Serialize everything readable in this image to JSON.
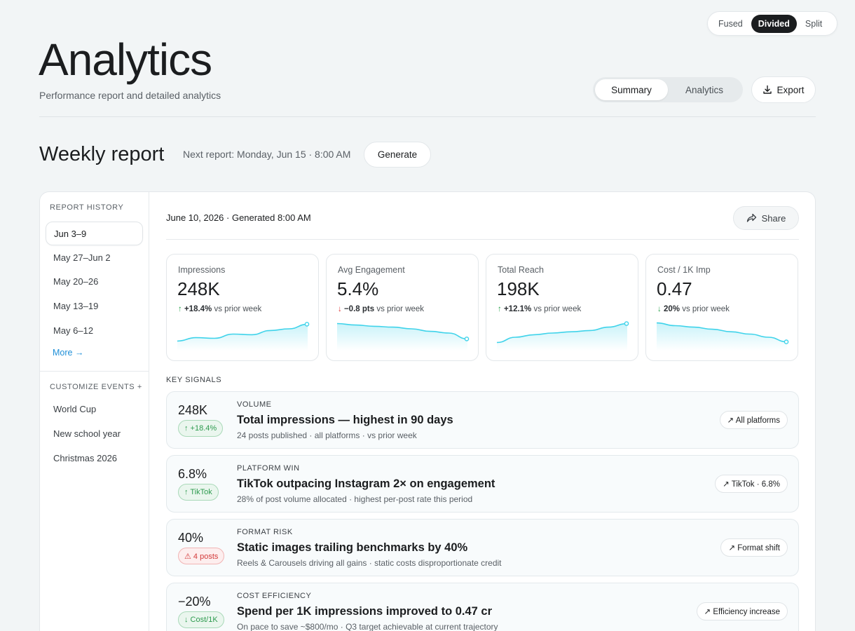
{
  "view_toggle": {
    "options": [
      "Fused",
      "Divided",
      "Split"
    ],
    "active": "Divided"
  },
  "header": {
    "title": "Analytics",
    "subtitle": "Performance report and detailed analytics",
    "tabs": [
      "Summary",
      "Analytics"
    ],
    "active_tab": "Summary",
    "export_label": "Export"
  },
  "weekly": {
    "title": "Weekly report",
    "next_report": "Next report: Monday, Jun 15 · 8:00 AM",
    "generate_label": "Generate"
  },
  "sidebar": {
    "history_heading": "REPORT HISTORY",
    "history": [
      "Jun 3–9",
      "May 27–Jun 2",
      "May 20–26",
      "May 13–19",
      "May 6–12"
    ],
    "active_history": "Jun 3–9",
    "more_label": "More →",
    "events_heading": "CUSTOMIZE EVENTS +",
    "events": [
      "World Cup",
      "New school year",
      "Christmas 2026"
    ]
  },
  "report": {
    "generated": "June 10, 2026 · Generated 8:00 AM",
    "share_label": "Share",
    "metrics": [
      {
        "label": "Impressions",
        "value": "248K",
        "arrow": "↑",
        "change": "+18.4%",
        "suffix": "vs prior week",
        "trend": "up",
        "spark": [
          0.12,
          0.28,
          0.25,
          0.45,
          0.42,
          0.62,
          0.7,
          0.92
        ]
      },
      {
        "label": "Avg Engagement",
        "value": "5.4%",
        "arrow": "↓",
        "change": "−0.8 pts",
        "suffix": "vs prior week",
        "trend": "down-bad",
        "spark": [
          0.95,
          0.88,
          0.82,
          0.78,
          0.7,
          0.58,
          0.5,
          0.22
        ]
      },
      {
        "label": "Total Reach",
        "value": "198K",
        "arrow": "↑",
        "change": "+12.1%",
        "suffix": "vs prior week",
        "trend": "up",
        "spark": [
          0.05,
          0.3,
          0.42,
          0.5,
          0.56,
          0.62,
          0.78,
          0.95
        ]
      },
      {
        "label": "Cost / 1K Imp",
        "value": "0.47",
        "arrow": "↓",
        "change": "20%",
        "suffix": "vs prior week",
        "trend": "down-good",
        "spark": [
          0.98,
          0.85,
          0.78,
          0.68,
          0.56,
          0.45,
          0.3,
          0.08
        ]
      }
    ],
    "signals_heading": "KEY SIGNALS",
    "signals": [
      {
        "value": "248K",
        "badge": "↑ +18.4%",
        "badge_type": "good",
        "kicker": "VOLUME",
        "title": "Total impressions — highest in 90 days",
        "desc": "24 posts published · all platforms · vs prior week",
        "chip": "↗ All platforms"
      },
      {
        "value": "6.8%",
        "badge": "↑ TikTok",
        "badge_type": "good",
        "kicker": "PLATFORM WIN",
        "title": "TikTok outpacing Instagram 2× on engagement",
        "desc": "28% of post volume allocated · highest per-post rate this period",
        "chip": "↗ TikTok · 6.8%"
      },
      {
        "value": "40%",
        "badge": "⚠ 4 posts",
        "badge_type": "bad",
        "kicker": "FORMAT RISK",
        "title": "Static images trailing benchmarks by 40%",
        "desc": "Reels & Carousels driving all gains · static costs disproportionate credit",
        "chip": "↗ Format shift"
      },
      {
        "value": "−20%",
        "badge": "↓ Cost/1K",
        "badge_type": "good",
        "kicker": "COST EFFICIENCY",
        "title": "Spend per 1K impressions improved to 0.47 cr",
        "desc": "On pace to save ~$800/mo · Q3 target achievable at current trajectory",
        "chip": "↗ Efficiency increase"
      }
    ]
  },
  "colors": {
    "accent": "#3fd3ea",
    "up": "#2ea44f",
    "down": "#e03a3a",
    "link": "#1f8fd8"
  }
}
